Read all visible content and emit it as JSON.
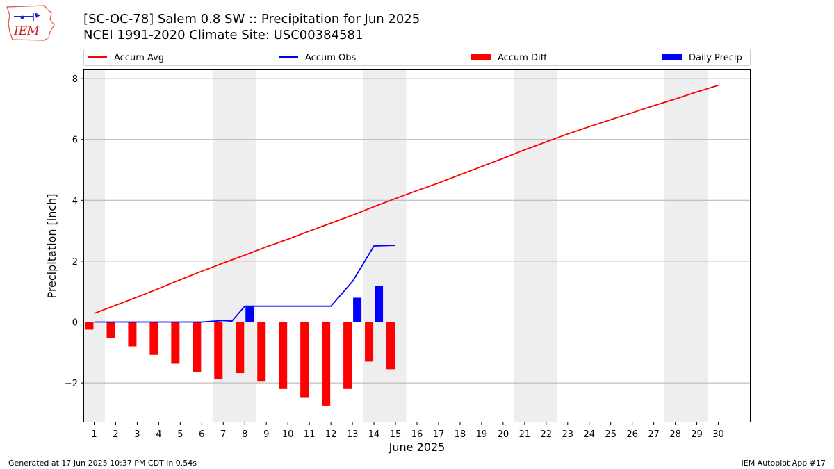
{
  "header": {
    "title_line1": "[SC-OC-78] Salem 0.8 SW :: Precipitation for Jun 2025",
    "title_line2": "NCEI 1991-2020 Climate Site: USC00384581",
    "logo_text": "IEM"
  },
  "footer": {
    "generated": "Generated at 17 Jun 2025 10:37 PM CDT in 0.54s",
    "app": "IEM Autoplot App #17"
  },
  "chart_data": {
    "type": "bar",
    "title": "[SC-OC-78] Salem 0.8 SW :: Precipitation for Jun 2025",
    "subtitle": "NCEI 1991-2020 Climate Site: USC00384581",
    "xlabel": "June 2025",
    "ylabel": "Precipitation [inch]",
    "ylim": [
      -3.3,
      8.3
    ],
    "xlim": [
      0.5,
      31.5
    ],
    "yticks": [
      -2,
      0,
      2,
      4,
      6,
      8
    ],
    "ytick_labels": [
      "−2",
      "0",
      "2",
      "4",
      "6",
      "8"
    ],
    "xticks": [
      1,
      2,
      3,
      4,
      5,
      6,
      7,
      8,
      9,
      10,
      11,
      12,
      13,
      14,
      15,
      16,
      17,
      18,
      19,
      20,
      21,
      22,
      23,
      24,
      25,
      26,
      27,
      28,
      29,
      30
    ],
    "grid": "horizontal",
    "legend_placement": "top",
    "weekend_shading": [
      [
        0.5,
        1.5
      ],
      [
        6.5,
        8.5
      ],
      [
        13.5,
        15.5
      ],
      [
        20.5,
        22.5
      ],
      [
        27.5,
        29.5
      ]
    ],
    "colors": {
      "accum_avg": "#ff0000",
      "accum_obs": "#0000ff",
      "accum_diff": "#ff0000",
      "daily_precip": "#0000ff",
      "weekend": "#eeeeee",
      "grid": "#b0b0b0"
    },
    "legend": [
      "Accum Avg",
      "Accum Obs",
      "Accum Diff",
      "Daily Precip"
    ],
    "series": [
      {
        "name": "Accum Avg",
        "kind": "line",
        "x": [
          1,
          2,
          3,
          4,
          5,
          6,
          7,
          8,
          9,
          10,
          11,
          12,
          13,
          14,
          15,
          16,
          17,
          18,
          19,
          20,
          21,
          22,
          23,
          24,
          25,
          26,
          27,
          28,
          29,
          30
        ],
        "values": [
          0.28,
          0.55,
          0.82,
          1.1,
          1.39,
          1.67,
          1.94,
          2.2,
          2.47,
          2.72,
          2.99,
          3.25,
          3.51,
          3.79,
          4.06,
          4.32,
          4.57,
          4.84,
          5.11,
          5.38,
          5.66,
          5.92,
          6.18,
          6.42,
          6.65,
          6.88,
          7.11,
          7.33,
          7.56,
          7.78
        ]
      },
      {
        "name": "Accum Obs",
        "kind": "line",
        "x": [
          1,
          2,
          3,
          4,
          5,
          6,
          7,
          7.4,
          8,
          9,
          10,
          11,
          12,
          13,
          14,
          15
        ],
        "values": [
          0,
          0,
          0,
          0,
          0,
          0,
          0.05,
          0.03,
          0.52,
          0.52,
          0.52,
          0.52,
          0.52,
          1.33,
          2.5,
          2.52
        ]
      },
      {
        "name": "Accum Diff",
        "kind": "bar",
        "x": [
          1,
          2,
          3,
          4,
          5,
          6,
          7,
          8,
          9,
          10,
          11,
          12,
          13,
          14,
          15
        ],
        "values": [
          -0.25,
          -0.53,
          -0.8,
          -1.08,
          -1.37,
          -1.65,
          -1.88,
          -1.68,
          -1.96,
          -2.2,
          -2.49,
          -2.75,
          -2.2,
          -1.3,
          -1.55
        ]
      },
      {
        "name": "Daily Precip",
        "kind": "bar",
        "x": [
          8,
          13,
          14
        ],
        "values": [
          0.5,
          0.8,
          1.18
        ]
      }
    ]
  }
}
